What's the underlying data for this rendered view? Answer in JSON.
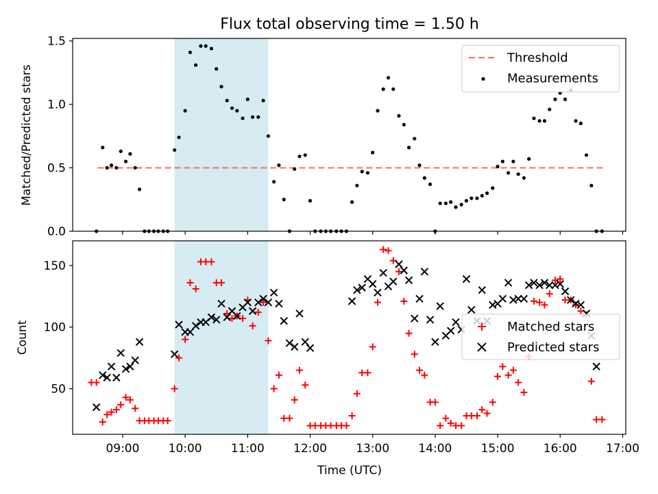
{
  "figure": {
    "title": "Flux total observing time = 1.50 h"
  },
  "colors": {
    "threshold": "#ff6666",
    "shade": "#add8e6",
    "measurement": "#000000",
    "matched": "#ff0000",
    "predicted": "#000000"
  },
  "chart_data": [
    {
      "type": "scatter",
      "ylabel": "Matched/Predicted stars",
      "xlim": [
        8.2,
        17.05
      ],
      "ylim": [
        0,
        1.52
      ],
      "yticks": [
        "0.0",
        "0.5",
        "1.0",
        "1.5"
      ],
      "ytick_values": [
        0,
        0.5,
        1.0,
        1.5
      ],
      "shaded_span": [
        9.83,
        11.33
      ],
      "legend": {
        "loc": "upper right",
        "entries": [
          "Threshold",
          "Measurements"
        ]
      },
      "threshold": {
        "name": "Threshold",
        "x": [
          8.6,
          16.7
        ],
        "y": 0.5
      },
      "series": [
        {
          "name": "Measurements",
          "x": [
            8.58,
            8.68,
            8.75,
            8.82,
            8.9,
            8.97,
            9.05,
            9.12,
            9.2,
            9.27,
            9.35,
            9.42,
            9.5,
            9.57,
            9.65,
            9.72,
            9.83,
            9.9,
            10.0,
            10.08,
            10.17,
            10.25,
            10.33,
            10.42,
            10.5,
            10.58,
            10.67,
            10.75,
            10.83,
            10.92,
            11.0,
            11.08,
            11.17,
            11.25,
            11.33,
            11.42,
            11.5,
            11.58,
            11.67,
            11.75,
            11.83,
            11.92,
            12.0,
            12.08,
            12.17,
            12.25,
            12.33,
            12.42,
            12.5,
            12.58,
            12.67,
            12.75,
            12.83,
            12.92,
            13.0,
            13.08,
            13.17,
            13.25,
            13.33,
            13.42,
            13.5,
            13.58,
            13.67,
            13.75,
            13.83,
            13.92,
            14.0,
            14.08,
            14.17,
            14.25,
            14.33,
            14.42,
            14.5,
            14.58,
            14.67,
            14.75,
            14.83,
            14.92,
            15.0,
            15.08,
            15.17,
            15.25,
            15.33,
            15.42,
            15.5,
            15.58,
            15.67,
            15.75,
            15.83,
            15.92,
            16.0,
            16.08,
            16.17,
            16.25,
            16.33,
            16.42,
            16.5,
            16.58,
            16.67
          ],
          "y": [
            0,
            0.66,
            0.5,
            0.52,
            0.5,
            0.63,
            0.55,
            0.61,
            0.5,
            0.33,
            0,
            0,
            0,
            0,
            0,
            0,
            0.64,
            0.74,
            0.95,
            1.41,
            1.31,
            1.46,
            1.46,
            1.44,
            1.28,
            1.14,
            1.03,
            0.97,
            0.95,
            0.89,
            1.04,
            0.9,
            0.9,
            1.03,
            0.75,
            0.39,
            0.52,
            0.25,
            0,
            0.49,
            0.59,
            0.6,
            0.24,
            0,
            0,
            0,
            0,
            0,
            0,
            0,
            0.23,
            0.36,
            0.47,
            0.46,
            0.62,
            0.95,
            1.12,
            1.21,
            1.12,
            0.91,
            0.84,
            0.66,
            0.73,
            0.52,
            0.42,
            0.37,
            0,
            0.22,
            0.22,
            0.23,
            0.19,
            0.21,
            0.24,
            0.26,
            0.26,
            0.28,
            0.3,
            0.34,
            0.51,
            0.55,
            0.46,
            0.55,
            0.45,
            0.42,
            0.57,
            0.89,
            0.87,
            0.87,
            0.96,
            1.04,
            1.09,
            1.04,
            1.11,
            0.87,
            0.85,
            0.6,
            0.36,
            0,
            0
          ]
        }
      ]
    },
    {
      "type": "scatter",
      "ylabel": "Count",
      "xlabel": "Time (UTC)",
      "xlim": [
        8.2,
        17.05
      ],
      "ylim": [
        13,
        170
      ],
      "xticks": [
        "09:00",
        "10:00",
        "11:00",
        "12:00",
        "13:00",
        "14:00",
        "15:00",
        "16:00",
        "17:00"
      ],
      "xtick_values": [
        9,
        10,
        11,
        12,
        13,
        14,
        15,
        16,
        17
      ],
      "yticks": [
        "50",
        "100",
        "150"
      ],
      "ytick_values": [
        50,
        100,
        150
      ],
      "shaded_span": [
        9.83,
        11.33
      ],
      "legend": {
        "loc": "center right",
        "entries": [
          "Matched stars",
          "Predicted stars"
        ]
      },
      "series": [
        {
          "name": "Matched stars",
          "marker": "+",
          "x": [
            8.5,
            8.58,
            8.68,
            8.75,
            8.82,
            8.9,
            8.97,
            9.05,
            9.12,
            9.2,
            9.27,
            9.35,
            9.42,
            9.5,
            9.57,
            9.65,
            9.72,
            9.83,
            9.9,
            10.0,
            10.08,
            10.17,
            10.25,
            10.33,
            10.42,
            10.5,
            10.58,
            10.67,
            10.75,
            10.83,
            10.92,
            11.0,
            11.08,
            11.17,
            11.25,
            11.33,
            11.42,
            11.5,
            11.58,
            11.67,
            11.75,
            11.83,
            11.92,
            12.0,
            12.08,
            12.17,
            12.25,
            12.33,
            12.42,
            12.5,
            12.58,
            12.67,
            12.75,
            12.83,
            12.92,
            13.0,
            13.08,
            13.17,
            13.25,
            13.33,
            13.42,
            13.5,
            13.58,
            13.67,
            13.75,
            13.83,
            13.92,
            14.0,
            14.08,
            14.17,
            14.25,
            14.33,
            14.42,
            14.5,
            14.58,
            14.67,
            14.75,
            14.83,
            14.92,
            15.0,
            15.08,
            15.17,
            15.25,
            15.33,
            15.42,
            15.5,
            15.58,
            15.67,
            15.75,
            15.83,
            15.92,
            16.0,
            16.08,
            16.17,
            16.25,
            16.33,
            16.42,
            16.5,
            16.58,
            16.67
          ],
          "y": [
            55,
            55,
            23,
            29,
            31,
            33,
            37,
            43,
            41,
            34,
            24,
            24,
            24,
            24,
            24,
            24,
            24,
            50,
            75,
            90,
            136,
            131,
            153,
            153,
            153,
            136,
            136,
            111,
            107,
            109,
            107,
            122,
            101,
            112,
            120,
            89,
            50,
            61,
            26,
            26,
            41,
            65,
            53,
            20,
            20,
            20,
            20,
            20,
            20,
            20,
            20,
            28,
            46,
            63,
            63,
            84,
            120,
            163,
            162,
            154,
            145,
            121,
            95,
            78,
            65,
            61,
            39,
            39,
            20,
            26,
            22,
            20,
            20,
            28,
            28,
            28,
            33,
            30,
            39,
            60,
            68,
            61,
            65,
            55,
            47,
            76,
            121,
            120,
            118,
            127,
            138,
            139,
            122,
            122,
            118,
            113,
            110,
            56,
            25,
            25
          ]
        },
        {
          "name": "Predicted stars",
          "marker": "x",
          "x": [
            8.58,
            8.68,
            8.75,
            8.82,
            8.9,
            8.97,
            9.05,
            9.12,
            9.2,
            9.27,
            9.83,
            9.9,
            10.0,
            10.08,
            10.17,
            10.25,
            10.33,
            10.42,
            10.5,
            10.58,
            10.67,
            10.75,
            10.83,
            10.92,
            11.0,
            11.08,
            11.17,
            11.25,
            11.33,
            11.42,
            11.5,
            11.58,
            11.67,
            11.75,
            11.83,
            11.92,
            12.0,
            12.67,
            12.75,
            12.83,
            12.92,
            13.0,
            13.08,
            13.17,
            13.25,
            13.33,
            13.42,
            13.5,
            13.58,
            13.67,
            13.75,
            13.83,
            13.92,
            14.0,
            14.08,
            14.17,
            14.25,
            14.33,
            14.42,
            14.5,
            14.58,
            14.67,
            14.75,
            14.83,
            14.92,
            15.0,
            15.08,
            15.17,
            15.25,
            15.33,
            15.42,
            15.5,
            15.58,
            15.67,
            15.75,
            15.83,
            15.92,
            16.0,
            16.08,
            16.17,
            16.25,
            16.33,
            16.42,
            16.5,
            16.58
          ],
          "y": [
            35,
            61,
            59,
            68,
            59,
            79,
            66,
            68,
            73,
            88,
            78,
            102,
            96,
            96,
            101,
            104,
            104,
            108,
            106,
            119,
            108,
            113,
            109,
            116,
            120,
            113,
            120,
            123,
            120,
            128,
            119,
            105,
            87,
            84,
            111,
            88,
            83,
            121,
            130,
            132,
            139,
            135,
            128,
            144,
            133,
            137,
            151,
            146,
            138,
            107,
            123,
            145,
            106,
            88,
            117,
            93,
            97,
            104,
            98,
            139,
            114,
            105,
            130,
            105,
            118,
            119,
            123,
            136,
            122,
            123,
            123,
            134,
            136,
            134,
            136,
            134,
            134,
            135,
            129,
            122,
            119,
            118,
            111,
            93,
            68
          ]
        }
      ]
    }
  ]
}
